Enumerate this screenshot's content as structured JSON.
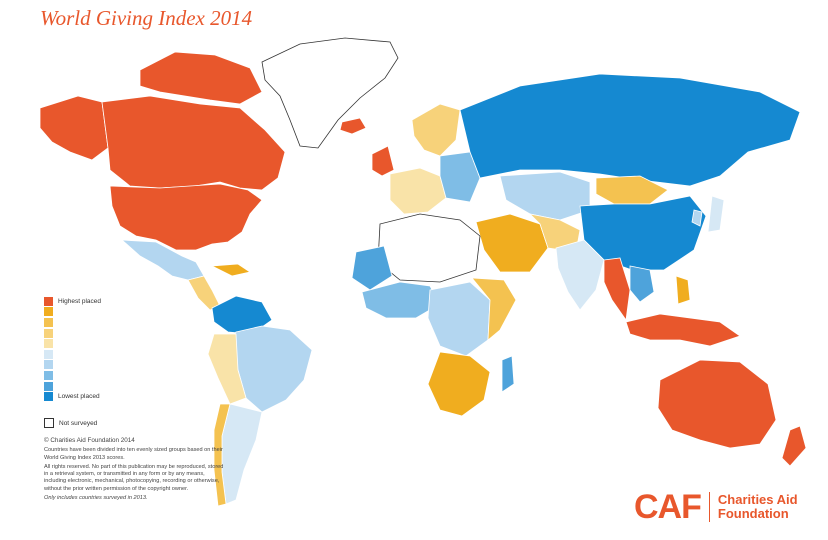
{
  "title": "World Giving Index 2014",
  "legend": {
    "items": [
      {
        "label": "Highest placed",
        "color": "#e8572c"
      },
      {
        "label": "",
        "color": "#f0ad1f"
      },
      {
        "label": "",
        "color": "#f4c250"
      },
      {
        "label": "",
        "color": "#f7d27a"
      },
      {
        "label": "",
        "color": "#f9e3a8"
      },
      {
        "label": "",
        "color": "#d6e8f5"
      },
      {
        "label": "",
        "color": "#b3d6f0"
      },
      {
        "label": "",
        "color": "#7fbde6"
      },
      {
        "label": "",
        "color": "#4ea3db"
      },
      {
        "label": "Lowest placed",
        "color": "#1589d1"
      }
    ],
    "not_surveyed": "Not surveyed"
  },
  "notes": {
    "copyright": "© Charities Aid Foundation 2014",
    "line1": "Countries have been divided into ten evenly sized groups based on their World Giving Index 2013 scores.",
    "line2": "All rights reserved. No part of this publication may be reproduced, stored in a retrieval system, or transmitted in any form or by any means, including electronic, mechanical, photocopying, recording or otherwise, without the prior written permission of the copyright owner.",
    "line3": "Only includes countries surveyed in 2013."
  },
  "logo": {
    "mark": "CAF",
    "name_line1": "Charities Aid",
    "name_line2": "Foundation"
  },
  "colors": {
    "highest": "#e8572c",
    "lowest": "#1589d1",
    "not_surveyed": "#ffffff",
    "outline": "#333333"
  }
}
